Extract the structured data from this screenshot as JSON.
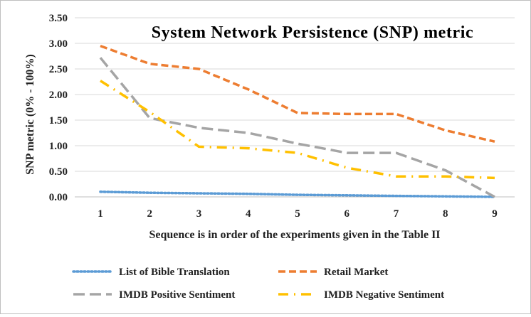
{
  "chart_data": {
    "type": "line",
    "title": "System Network Persistence (SNP) metric",
    "xlabel": "Sequence is in order of the experiments given in the Table II",
    "ylabel": "SNP metric (0% - 100%)",
    "x": [
      1,
      2,
      3,
      4,
      5,
      6,
      7,
      8,
      9
    ],
    "x_tick_labels": [
      "1",
      "2",
      "3",
      "4",
      "5",
      "6",
      "7",
      "8",
      "9"
    ],
    "ylim": [
      0,
      3.5
    ],
    "y_ticks": [
      0,
      0.5,
      1.0,
      1.5,
      2.0,
      2.5,
      3.0,
      3.5
    ],
    "y_tick_labels": [
      "0.00",
      "0.50",
      "1.00",
      "1.50",
      "2.00",
      "2.50",
      "3.00",
      "3.50"
    ],
    "grid": "horizontal",
    "legend_position": "bottom",
    "series": [
      {
        "name": "List of Bible Translation",
        "color": "#5B9BD5",
        "dash": "dotted",
        "values": [
          0.1,
          0.08,
          0.07,
          0.06,
          0.04,
          0.03,
          0.02,
          0.01,
          0.0
        ]
      },
      {
        "name": "Retail Market",
        "color": "#ED7D31",
        "dash": "dashed",
        "values": [
          2.95,
          2.6,
          2.5,
          2.1,
          1.64,
          1.62,
          1.62,
          1.3,
          1.08
        ]
      },
      {
        "name": "IMDB Positive Sentiment",
        "color": "#A5A5A5",
        "dash": "long-dashed",
        "values": [
          2.72,
          1.54,
          1.35,
          1.25,
          1.04,
          0.86,
          0.86,
          0.52,
          0.0
        ]
      },
      {
        "name": "IMDB Negative Sentiment",
        "color": "#FFC000",
        "dash": "dash-dot",
        "values": [
          2.27,
          1.66,
          0.98,
          0.95,
          0.86,
          0.57,
          0.4,
          0.4,
          0.37
        ]
      }
    ]
  }
}
